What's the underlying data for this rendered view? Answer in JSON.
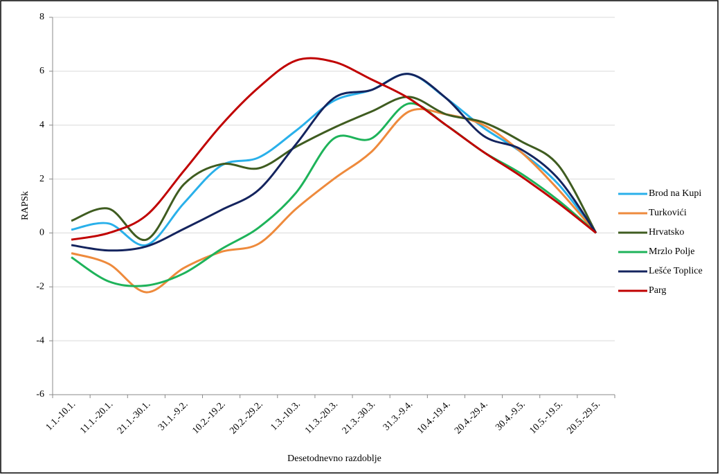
{
  "chart_data": {
    "type": "line",
    "smooth": true,
    "x_label": "Desetodnevno razdoblje",
    "y_label": "RAPSk",
    "categories": [
      "1.1.-10.1.",
      "11.1.-20.1.",
      "21.1.-30.1.",
      "31.1.-9.2.",
      "10.2.-19.2.",
      "20.2.-29.2.",
      "1.3.-10.3.",
      "11.3.-20.3.",
      "21.3.-30.3.",
      "31.3.-9.4.",
      "10.4.-19.4.",
      "20.4.-29.4.",
      "30.4.-9.5.",
      "10.5.-19.5.",
      "20.5.-29.5."
    ],
    "series": [
      {
        "name": "Brod na Kupi",
        "color": "#29b0ea",
        "values": [
          0.12,
          0.35,
          -0.45,
          1.1,
          2.5,
          2.8,
          3.8,
          4.9,
          5.3,
          5.9,
          5.0,
          3.9,
          3.0,
          1.8,
          0
        ]
      },
      {
        "name": "Turkovići",
        "color": "#ee8a3c",
        "values": [
          -0.75,
          -1.15,
          -2.2,
          -1.3,
          -0.7,
          -0.4,
          0.9,
          2.0,
          3.0,
          4.5,
          4.4,
          4.0,
          3.0,
          1.6,
          0
        ]
      },
      {
        "name": "Hrvatsko",
        "color": "#3f5c20",
        "values": [
          0.45,
          0.9,
          -0.25,
          1.8,
          2.55,
          2.4,
          3.2,
          3.9,
          4.5,
          5.05,
          4.4,
          4.1,
          3.4,
          2.5,
          0
        ]
      },
      {
        "name": "Mrzlo Polje",
        "color": "#1eb35a",
        "values": [
          -0.9,
          -1.8,
          -1.95,
          -1.5,
          -0.6,
          0.2,
          1.5,
          3.5,
          3.5,
          4.8,
          4.0,
          3.0,
          2.2,
          1.2,
          0
        ]
      },
      {
        "name": "Lešće Toplice",
        "color": "#14245e",
        "values": [
          -0.45,
          -0.65,
          -0.5,
          0.15,
          0.85,
          1.6,
          3.3,
          5.0,
          5.3,
          5.9,
          5.0,
          3.6,
          3.1,
          2.0,
          0
        ]
      },
      {
        "name": "Parg",
        "color": "#c00000",
        "values": [
          -0.25,
          0.0,
          0.65,
          2.3,
          4.0,
          5.4,
          6.4,
          6.35,
          5.7,
          5.0,
          4.0,
          3.0,
          2.1,
          1.1,
          0
        ]
      }
    ],
    "ylim": [
      -6,
      8
    ],
    "yticks": [
      -6,
      -4,
      -2,
      0,
      2,
      4,
      6,
      8
    ],
    "grid": true,
    "legend": "right"
  }
}
